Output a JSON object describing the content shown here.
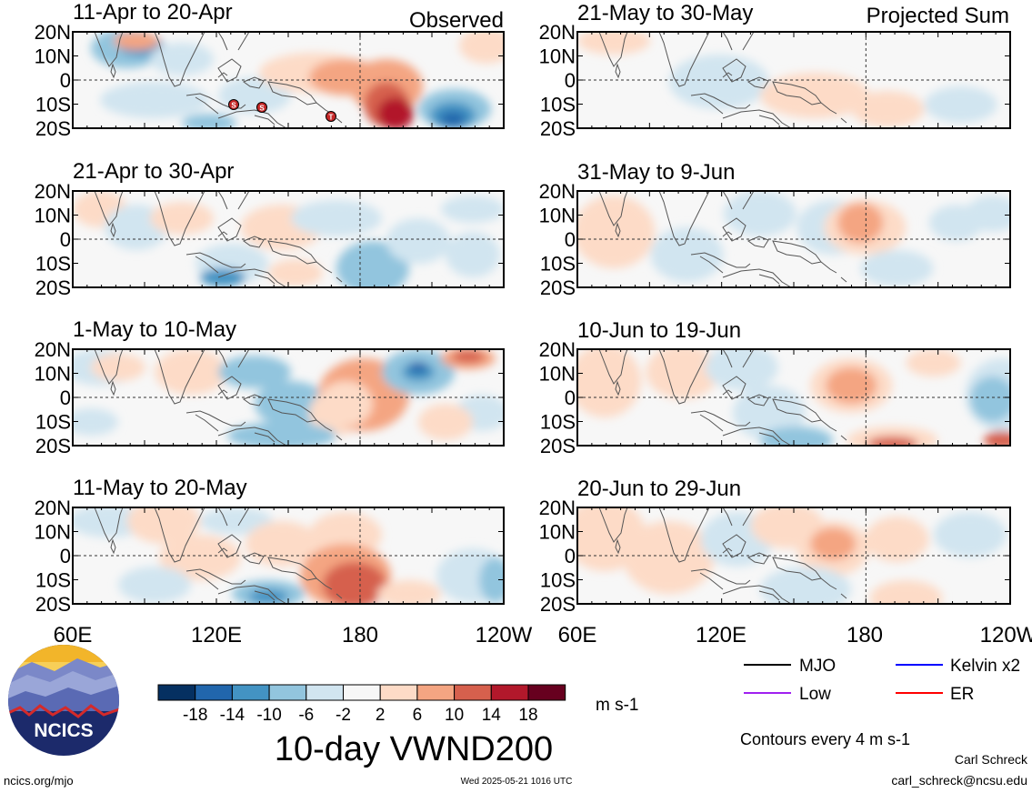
{
  "colors": {
    "scale": [
      "#053061",
      "#2166ac",
      "#4393c3",
      "#92c5de",
      "#d1e5f0",
      "#f7f7f7",
      "#fddbc7",
      "#f4a582",
      "#d6604d",
      "#b2182b",
      "#67001f"
    ],
    "land_outline": "#555555",
    "marker": "#c62828",
    "legend_mjo": "#000000",
    "legend_kelvin": "#0000ff",
    "legend_low": "#a020f0",
    "legend_er": "#ff0000"
  },
  "header": {
    "observed": "Observed",
    "projected": "Projected Sum"
  },
  "panels": {
    "left": [
      "11-Apr to 20-Apr",
      "21-Apr to 30-Apr",
      "1-May to 10-May",
      "11-May to 20-May"
    ],
    "right": [
      "21-May to 30-May",
      "31-May to 9-Jun",
      "10-Jun to 19-Jun",
      "20-Jun to 29-Jun"
    ]
  },
  "lat_labels": [
    "20N",
    "10N",
    "0",
    "10S",
    "20S"
  ],
  "lon_labels": [
    "60E",
    "120E",
    "180",
    "120W"
  ],
  "storm_markers": [
    "S",
    "S",
    "T"
  ],
  "colorbar": {
    "ticks": [
      "-18",
      "-14",
      "-10",
      "-6",
      "-2",
      "2",
      "6",
      "10",
      "14",
      "18"
    ],
    "unit": "m s-1"
  },
  "title": "10-day VWND200",
  "legend": {
    "mjo": "MJO",
    "kelvin": "Kelvin x2",
    "low": "Low",
    "er": "ER"
  },
  "contour_note": "Contours every 4 m s-1",
  "logo_text": "NCICS",
  "footer": {
    "url": "ncics.org/mjo",
    "timestamp": "Wed 2025-05-21 1016 UTC",
    "author": "Carl Schreck",
    "email": "carl_schreck@ncsu.edu"
  }
}
